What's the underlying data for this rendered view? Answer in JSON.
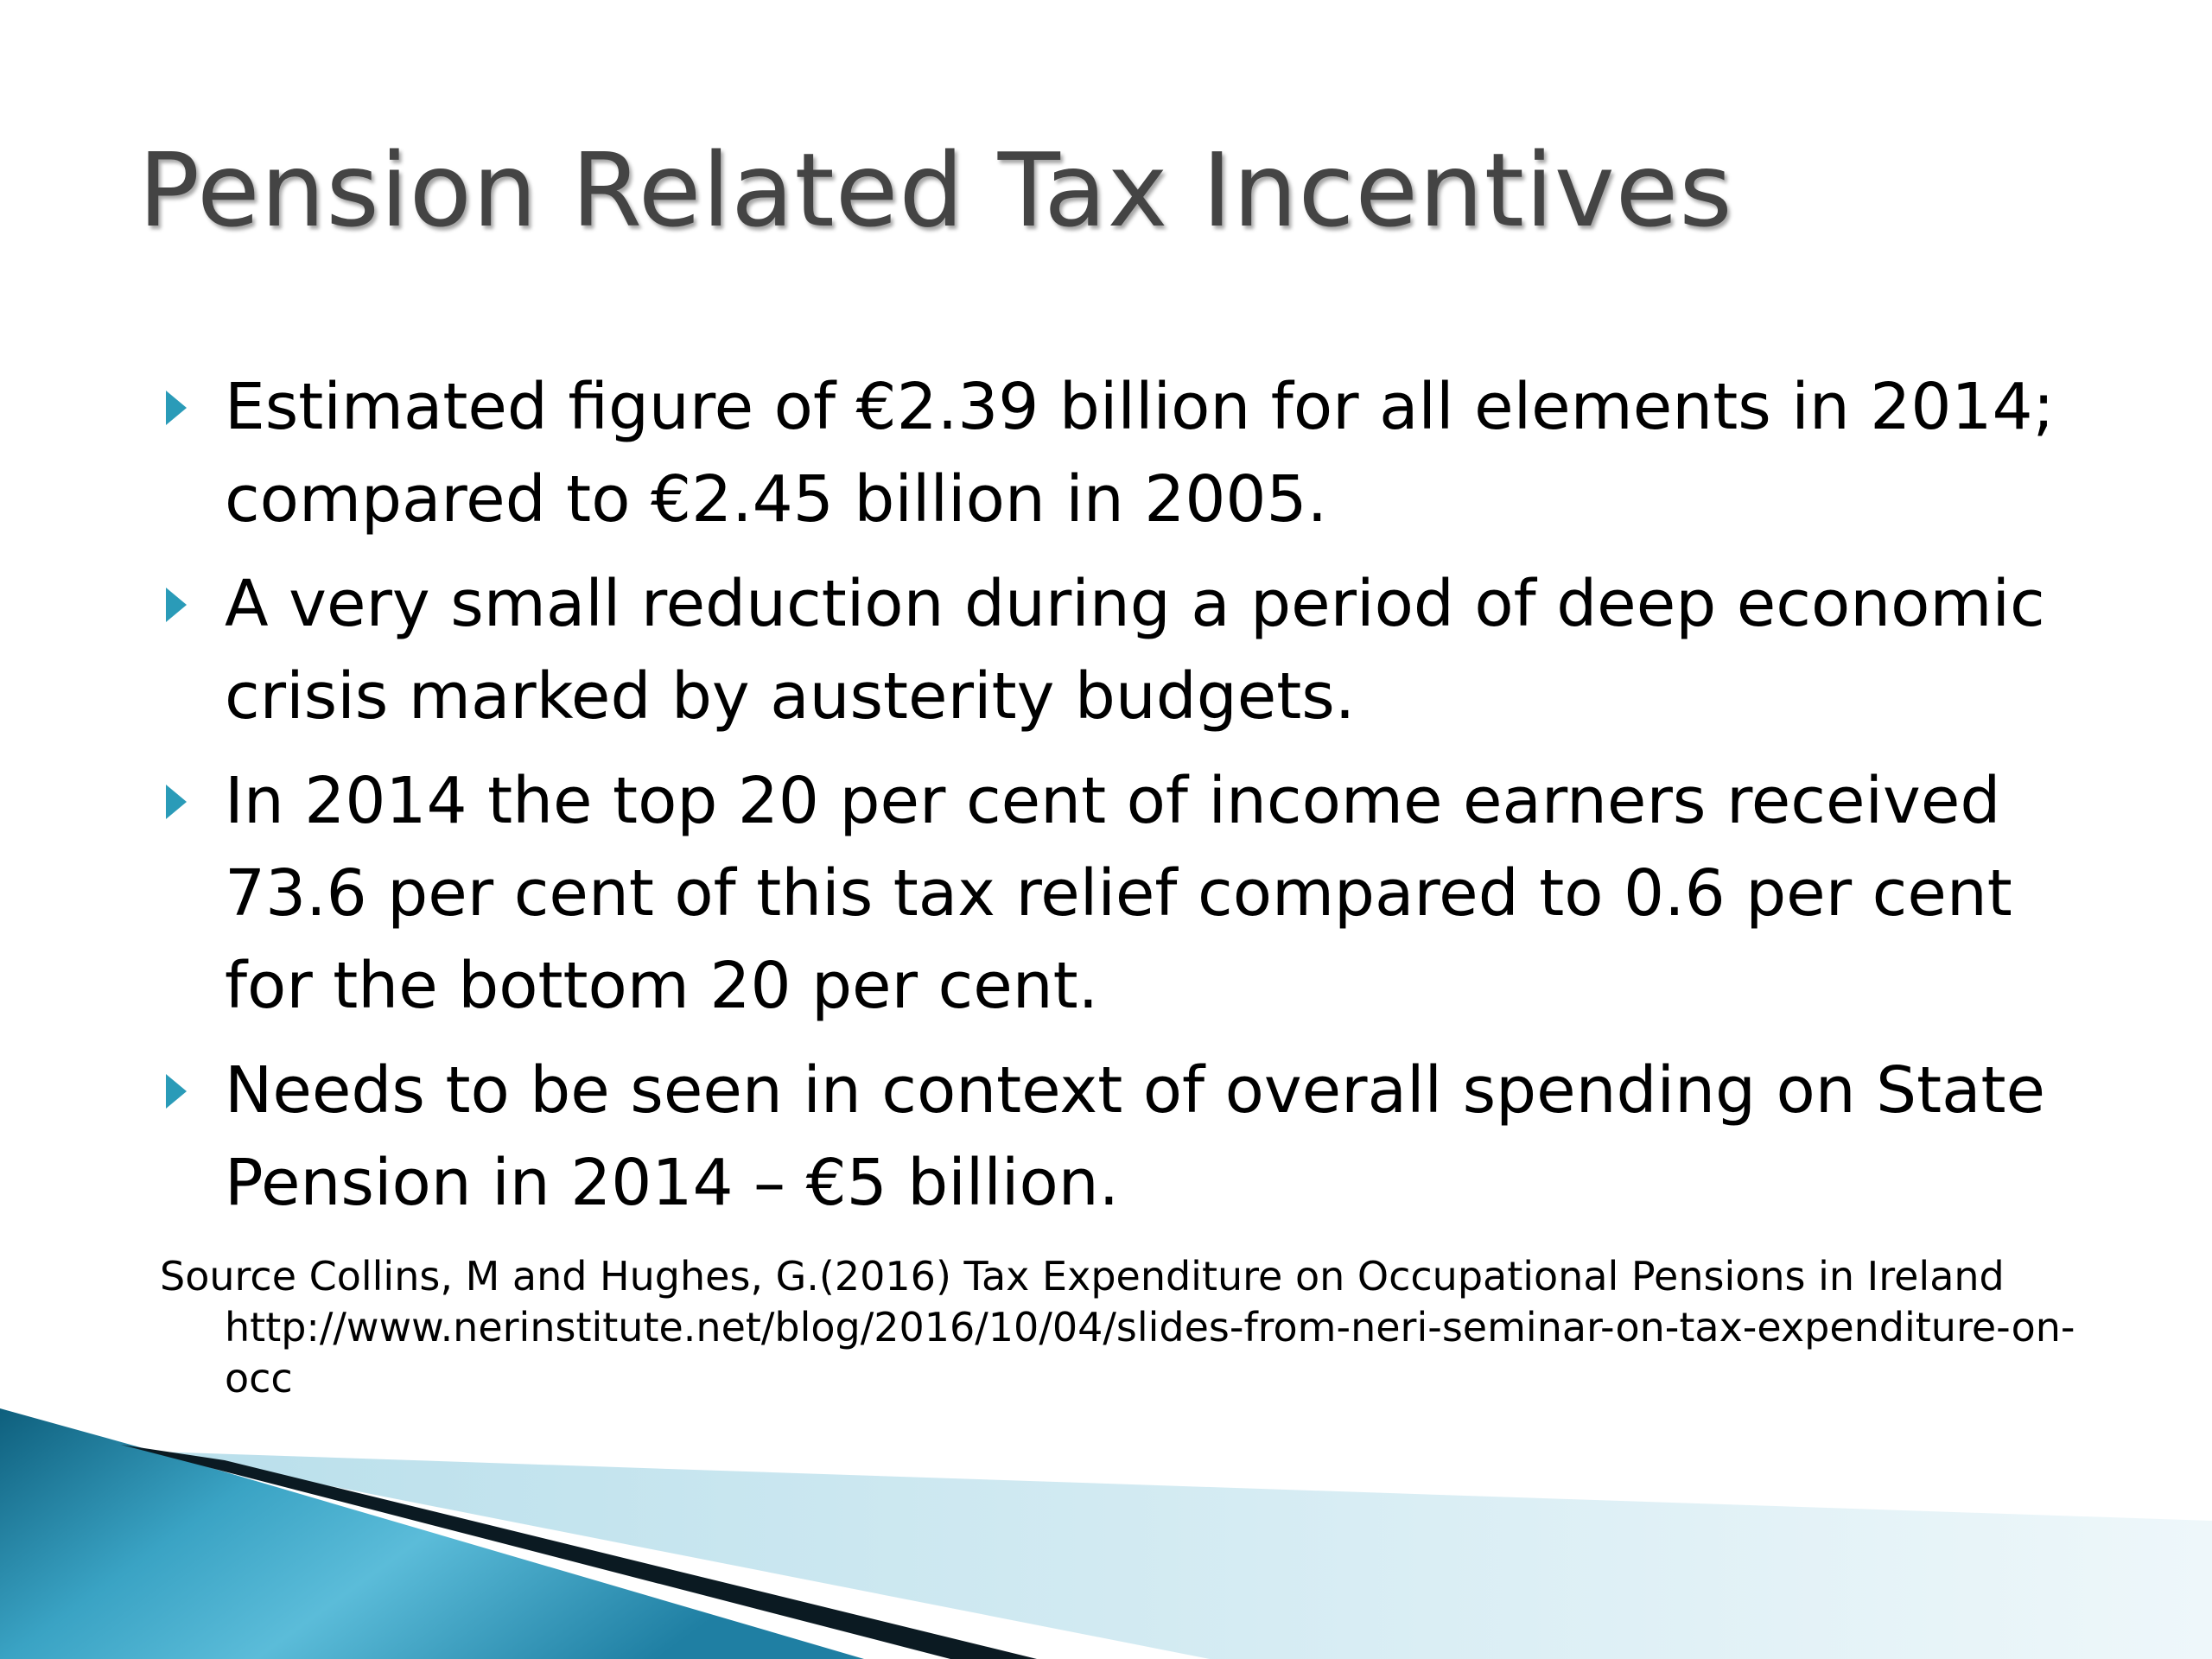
{
  "slide": {
    "title": "Pension Related Tax Incentives",
    "bullets": [
      "Estimated figure of €2.39 billion for all elements in 2014; compared to €2.45 billion in 2005.",
      "A very small reduction during a period of deep economic crisis marked by austerity budgets.",
      "In 2014 the top 20 per cent of income earners received 73.6 per cent of this tax relief compared to 0.6 per cent for the bottom 20 per cent.",
      "Needs to be seen in context of overall spending on State Pension in 2014 – €5 billion."
    ],
    "source": "Source Collins, M and Hughes, G.(2016) Tax Expenditure on Occupational Pensions in Ireland http://www.nerinstitute.net/blog/2016/10/04/slides-from-neri-seminar-on-tax-expenditure-on-occ"
  },
  "colors": {
    "title": "#444444",
    "bullet_marker": "#2a9bb8",
    "decor_dark": "#0e5f7d",
    "decor_light": "#5bbcd9",
    "decor_pale": "#d6edf4"
  },
  "icons": {
    "bullet": "triangle-right-icon"
  }
}
